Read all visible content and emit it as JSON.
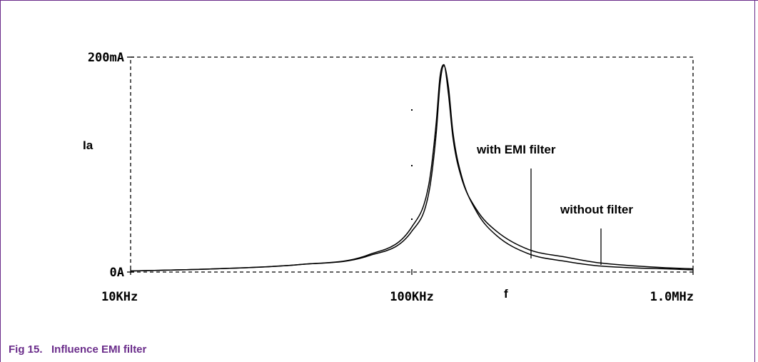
{
  "caption": "Fig 15.   Influence EMI filter",
  "colors": {
    "caption": "#6a2c8a",
    "curve": "#000000"
  },
  "chart_data": {
    "type": "line",
    "x_scale": "log",
    "xlim": [
      10000,
      1000000
    ],
    "ylim": [
      0,
      200
    ],
    "x_ticks": [
      {
        "value": 10000,
        "label": "10KHz"
      },
      {
        "value": 100000,
        "label": "100KHz"
      },
      {
        "value": 1000000,
        "label": "1.0MHz"
      }
    ],
    "y_ticks": [
      {
        "value": 0,
        "label": "0A"
      },
      {
        "value": 200,
        "label": "200mA"
      }
    ],
    "xlabel": "f",
    "ylabel": "Ia",
    "grid": false,
    "series": [
      {
        "name": "with EMI filter",
        "x": [
          10000,
          20000,
          40000,
          70000,
          100000,
          115000,
          122000,
          126000,
          130000,
          135000,
          140000,
          150000,
          170000,
          200000,
          260000,
          350000,
          450000,
          600000,
          800000,
          1000000
        ],
        "y": [
          1,
          3,
          7,
          16,
          42,
          82,
          138,
          182,
          193,
          165,
          125,
          88,
          58,
          38,
          21,
          14,
          9,
          6,
          4,
          3
        ]
      },
      {
        "name": "without filter",
        "x": [
          10000,
          20000,
          40000,
          70000,
          100000,
          115000,
          122000,
          126000,
          130000,
          135000,
          140000,
          150000,
          170000,
          200000,
          260000,
          350000,
          450000,
          600000,
          800000,
          1000000
        ],
        "y": [
          1,
          3,
          7,
          15,
          38,
          74,
          128,
          175,
          192,
          172,
          130,
          90,
          56,
          34,
          17,
          10,
          6,
          4,
          3,
          2
        ]
      }
    ]
  }
}
